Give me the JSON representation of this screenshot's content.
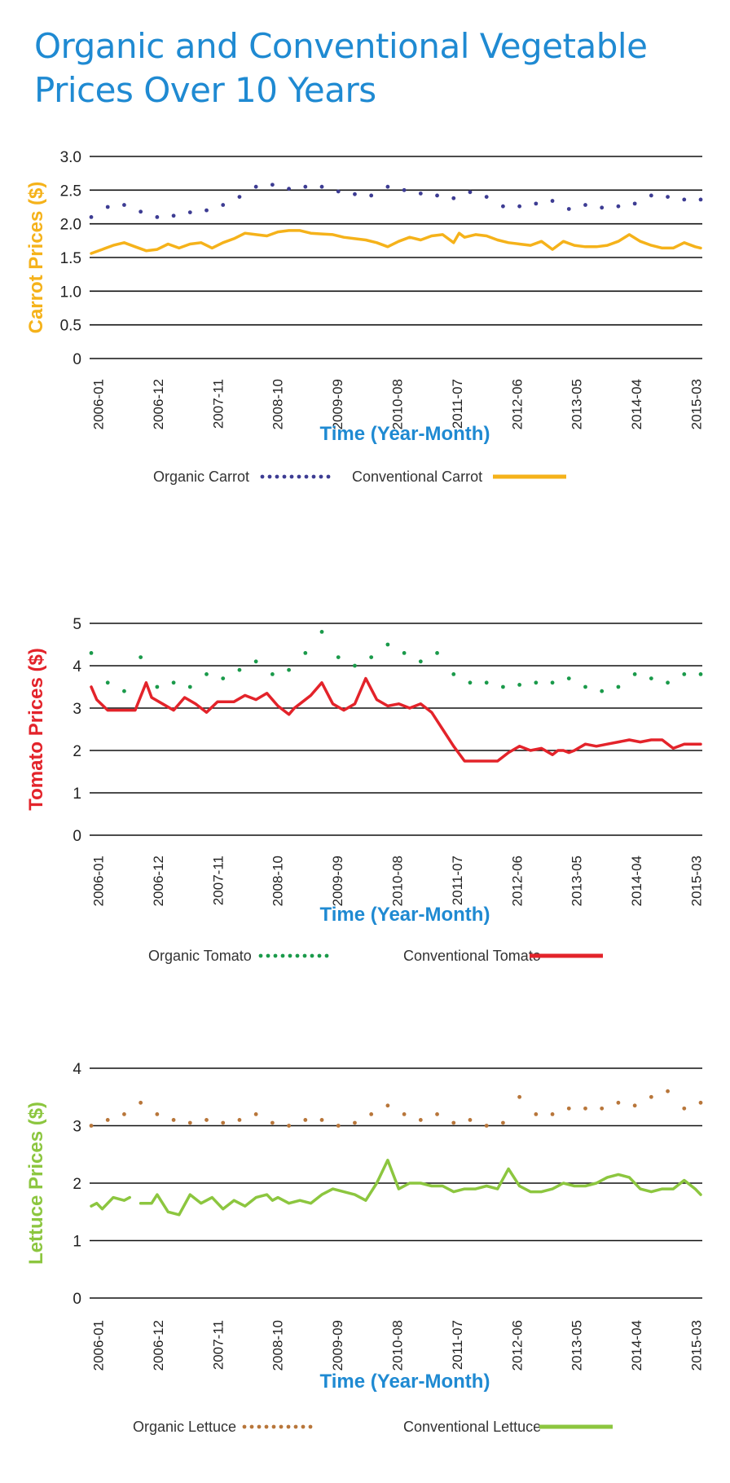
{
  "title_line1": "Organic and Conventional Vegetable",
  "title_line2": "Prices Over 10 Years",
  "chart_data": [
    {
      "type": "line",
      "id": "carrot",
      "ylabel": "Carrot Prices ($)",
      "ylabel_color": "#f5b21a",
      "xlabel": "Time (Year-Month)",
      "x_ticks": [
        "2006-01",
        "2006-12",
        "2007-11",
        "2008-10",
        "2009-09",
        "2010-08",
        "2011-07",
        "2012-06",
        "2013-05",
        "2014-04",
        "2015-03"
      ],
      "y_ticks": [
        "3.0",
        "2.5",
        "2.0",
        "1.5",
        "1.0",
        "0.5",
        "0"
      ],
      "ylim": [
        0,
        3
      ],
      "grid": true,
      "legend_position": "bottom",
      "series": [
        {
          "name": "Organic Carrot",
          "style": "dotted",
          "color": "#3d3c93",
          "x": [
            0,
            3,
            6,
            9,
            12,
            15,
            18,
            21,
            24,
            27,
            30,
            33,
            36,
            39,
            42,
            45,
            48,
            51,
            54,
            57,
            60,
            63,
            66,
            69,
            72,
            75,
            78,
            81,
            84,
            87,
            90,
            93,
            96,
            99,
            102,
            105,
            108,
            111
          ],
          "values": [
            2.1,
            2.25,
            2.28,
            2.18,
            2.1,
            2.12,
            2.17,
            2.2,
            2.28,
            2.4,
            2.55,
            2.58,
            2.52,
            2.55,
            2.55,
            2.48,
            2.44,
            2.42,
            2.55,
            2.5,
            2.45,
            2.42,
            2.38,
            2.47,
            2.4,
            2.26,
            2.26,
            2.3,
            2.34,
            2.22,
            2.28,
            2.24,
            2.26,
            2.3,
            2.42,
            2.4,
            2.36,
            2.36
          ]
        },
        {
          "name": "Conventional Carrot",
          "style": "solid",
          "color": "#f5b21a",
          "x": [
            0,
            2,
            4,
            6,
            8,
            10,
            12,
            14,
            16,
            18,
            20,
            22,
            24,
            26,
            28,
            30,
            32,
            34,
            36,
            38,
            40,
            42,
            44,
            46,
            48,
            50,
            52,
            54,
            56,
            58,
            60,
            62,
            64,
            66,
            67,
            68,
            70,
            72,
            74,
            76,
            78,
            80,
            82,
            84,
            86,
            88,
            90,
            92,
            94,
            96,
            98,
            100,
            102,
            104,
            106,
            108,
            110,
            111
          ],
          "values": [
            1.56,
            1.62,
            1.68,
            1.72,
            1.66,
            1.6,
            1.62,
            1.7,
            1.64,
            1.7,
            1.72,
            1.64,
            1.72,
            1.78,
            1.86,
            1.84,
            1.82,
            1.88,
            1.9,
            1.9,
            1.86,
            1.85,
            1.84,
            1.8,
            1.78,
            1.76,
            1.72,
            1.66,
            1.74,
            1.8,
            1.76,
            1.82,
            1.84,
            1.72,
            1.86,
            1.8,
            1.84,
            1.82,
            1.76,
            1.72,
            1.7,
            1.68,
            1.74,
            1.62,
            1.74,
            1.68,
            1.66,
            1.66,
            1.68,
            1.74,
            1.84,
            1.74,
            1.68,
            1.64,
            1.64,
            1.72,
            1.66,
            1.64
          ]
        }
      ]
    },
    {
      "type": "line",
      "id": "tomato",
      "ylabel": "Tomato Prices ($)",
      "ylabel_color": "#e3232a",
      "xlabel": "Time (Year-Month)",
      "x_ticks": [
        "2006-01",
        "2006-12",
        "2007-11",
        "2008-10",
        "2009-09",
        "2010-08",
        "2011-07",
        "2012-06",
        "2013-05",
        "2014-04",
        "2015-03"
      ],
      "y_ticks": [
        "5",
        "4",
        "3",
        "2",
        "1",
        "0"
      ],
      "ylim": [
        0,
        5
      ],
      "grid": true,
      "legend_position": "bottom",
      "series": [
        {
          "name": "Organic Tomato",
          "style": "dotted",
          "color": "#1a9a4a",
          "x": [
            0,
            3,
            6,
            9,
            12,
            15,
            18,
            21,
            24,
            27,
            30,
            33,
            36,
            39,
            42,
            45,
            48,
            51,
            54,
            57,
            60,
            63,
            66,
            69,
            72,
            75,
            78,
            81,
            84,
            87,
            90,
            93,
            96,
            99,
            102,
            105,
            108,
            111
          ],
          "values": [
            4.3,
            3.6,
            3.4,
            4.2,
            3.5,
            3.6,
            3.5,
            3.8,
            3.7,
            3.9,
            4.1,
            3.8,
            3.9,
            4.3,
            4.8,
            4.2,
            4.0,
            4.2,
            4.5,
            4.3,
            4.1,
            4.3,
            3.8,
            3.6,
            3.6,
            3.5,
            3.55,
            3.6,
            3.6,
            3.7,
            3.5,
            3.4,
            3.5,
            3.8,
            3.7,
            3.6,
            3.8,
            3.8
          ]
        },
        {
          "name": "Conventional Tomato",
          "style": "solid",
          "color": "#e3232a",
          "x": [
            0,
            1,
            3,
            6,
            8,
            10,
            11,
            13,
            15,
            17,
            19,
            21,
            23,
            26,
            28,
            30,
            32,
            34,
            36,
            37,
            38,
            40,
            42,
            44,
            46,
            48,
            50,
            52,
            54,
            56,
            58,
            60,
            61,
            62,
            64,
            66,
            68,
            70,
            72,
            74,
            76,
            78,
            80,
            82,
            84,
            85,
            86,
            87,
            88,
            90,
            92,
            94,
            96,
            98,
            100,
            102,
            104,
            106,
            108,
            109,
            110,
            111
          ],
          "values": [
            3.5,
            3.2,
            2.95,
            2.95,
            2.95,
            3.6,
            3.25,
            3.1,
            2.95,
            3.25,
            3.1,
            2.9,
            3.15,
            3.15,
            3.3,
            3.2,
            3.35,
            3.05,
            2.85,
            3.0,
            3.1,
            3.3,
            3.6,
            3.1,
            2.95,
            3.1,
            3.7,
            3.2,
            3.05,
            3.1,
            3.0,
            3.1,
            3.0,
            2.9,
            2.5,
            2.1,
            1.75,
            1.75,
            1.75,
            1.75,
            1.95,
            2.1,
            2.0,
            2.05,
            1.9,
            2.0,
            2.0,
            1.95,
            2.0,
            2.15,
            2.1,
            2.15,
            2.2,
            2.25,
            2.2,
            2.25,
            2.25,
            2.05,
            2.15,
            2.15,
            2.15,
            2.15
          ]
        }
      ]
    },
    {
      "type": "line",
      "id": "lettuce",
      "ylabel": "Lettuce Prices ($)",
      "ylabel_color": "#8cc63f",
      "xlabel": "Time (Year-Month)",
      "x_ticks": [
        "2006-01",
        "2006-12",
        "2007-11",
        "2008-10",
        "2009-09",
        "2010-08",
        "2011-07",
        "2012-06",
        "2013-05",
        "2014-04",
        "2015-03"
      ],
      "y_ticks": [
        "4",
        "3",
        "2",
        "1",
        "0"
      ],
      "ylim": [
        0,
        4
      ],
      "grid": true,
      "legend_position": "bottom",
      "series": [
        {
          "name": "Organic Lettuce",
          "style": "dotted",
          "color": "#b8763a",
          "x": [
            0,
            3,
            6,
            9,
            12,
            15,
            18,
            21,
            24,
            27,
            30,
            33,
            36,
            39,
            42,
            45,
            48,
            51,
            54,
            57,
            60,
            63,
            66,
            69,
            72,
            75,
            78,
            81,
            84,
            87,
            90,
            93,
            96,
            99,
            102,
            105,
            108,
            111
          ],
          "values": [
            3.0,
            3.1,
            3.2,
            3.4,
            3.2,
            3.1,
            3.05,
            3.1,
            3.05,
            3.1,
            3.2,
            3.05,
            3.0,
            3.1,
            3.1,
            3.0,
            3.05,
            3.2,
            3.35,
            3.2,
            3.1,
            3.2,
            3.05,
            3.1,
            3.0,
            3.05,
            3.5,
            3.2,
            3.2,
            3.3,
            3.3,
            3.3,
            3.4,
            3.35,
            3.5,
            3.6,
            3.3,
            3.4
          ]
        },
        {
          "name": "Conventional Lettuce",
          "style": "solid",
          "color": "#8cc63f",
          "x": [
            0,
            1,
            2,
            4,
            6,
            7
          ],
          "values": [
            1.6,
            1.65,
            1.55,
            1.75,
            1.7,
            1.75
          ]
        },
        {
          "name": "",
          "style": "solid",
          "color": "#8cc63f",
          "x": [
            9,
            11,
            12,
            14,
            16,
            18,
            20,
            22,
            24,
            26,
            28,
            30,
            32,
            33,
            34,
            36,
            38,
            40,
            42,
            44,
            46,
            48,
            50,
            52,
            54,
            56,
            58,
            60,
            62,
            64,
            66,
            68,
            70,
            72,
            74,
            76,
            78,
            80,
            82,
            84,
            86,
            88,
            90,
            92,
            94,
            96,
            98,
            100,
            102,
            104,
            106,
            108,
            110,
            111
          ],
          "values": [
            1.65,
            1.65,
            1.8,
            1.5,
            1.45,
            1.8,
            1.65,
            1.75,
            1.55,
            1.7,
            1.6,
            1.75,
            1.8,
            1.7,
            1.75,
            1.65,
            1.7,
            1.65,
            1.8,
            1.9,
            1.85,
            1.8,
            1.7,
            2.0,
            2.4,
            1.9,
            2.0,
            2.0,
            1.95,
            1.95,
            1.85,
            1.9,
            1.9,
            1.95,
            1.9,
            2.25,
            1.95,
            1.85,
            1.85,
            1.9,
            2.0,
            1.95,
            1.95,
            2.0,
            2.1,
            2.15,
            2.1,
            1.9,
            1.85,
            1.9,
            1.9,
            2.05,
            1.9,
            1.8
          ]
        }
      ]
    }
  ]
}
